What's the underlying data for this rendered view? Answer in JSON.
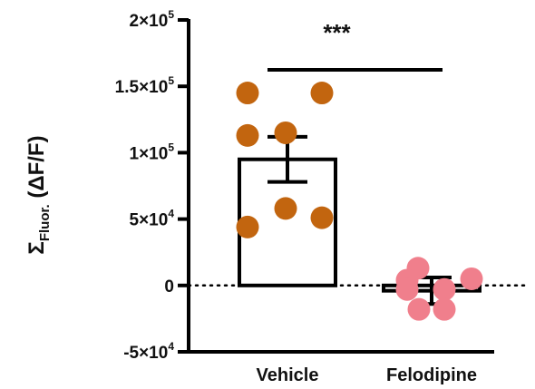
{
  "chart_data": {
    "type": "bar",
    "ylabel": "Σ",
    "ylabel_sub": "Fluor.",
    "ylabel_rest": " (ΔF/F)",
    "ylim": [
      -50000,
      200000
    ],
    "yticks": [
      {
        "value": 200000,
        "mant": "2×10",
        "exp": "5"
      },
      {
        "value": 150000,
        "mant": "1.5×10",
        "exp": "5"
      },
      {
        "value": 100000,
        "mant": "1×10",
        "exp": "5"
      },
      {
        "value": 50000,
        "mant": "5×10",
        "exp": "4"
      },
      {
        "value": 0,
        "mant": "0",
        "exp": ""
      },
      {
        "value": -50000,
        "mant": "-5×10",
        "exp": "4"
      }
    ],
    "categories": [
      "Vehicle",
      "Felodipine"
    ],
    "bars": [
      {
        "category": "Vehicle",
        "mean": 95000,
        "sem": 17000,
        "color": "#c2650f",
        "points": [
          145000,
          145000,
          113000,
          115000,
          58000,
          44000,
          51000
        ]
      },
      {
        "category": "Felodipine",
        "mean": -4000,
        "sem": 10000,
        "color": "#f07f8c",
        "points": [
          13000,
          4000,
          5000,
          -3000,
          -3000,
          -18000,
          -18000
        ]
      }
    ],
    "reference_line": 0,
    "significance": "***",
    "grid": false
  }
}
